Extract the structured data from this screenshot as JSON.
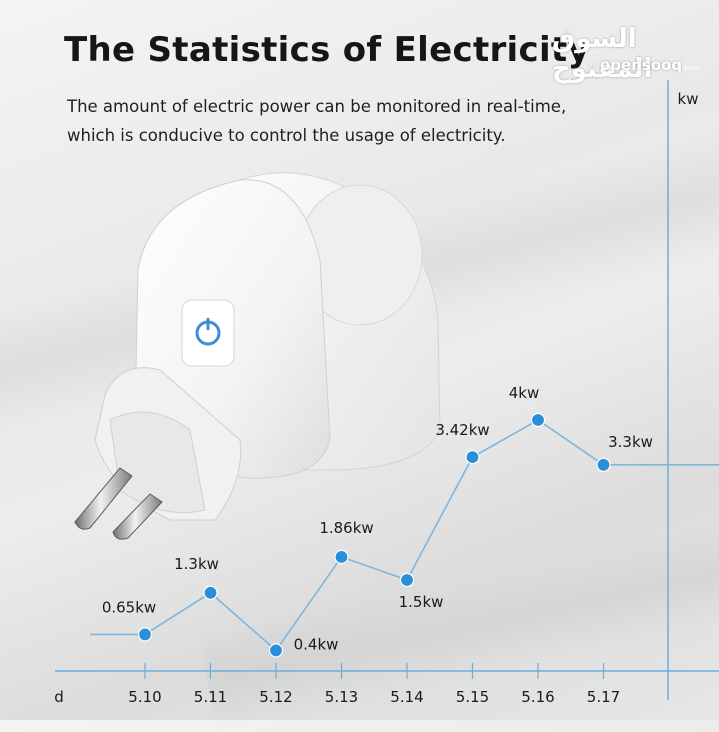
{
  "title": "The Statistics of Electricity",
  "subtitle_lines": [
    "The amount of electric power can be monitored in real-time,",
    "which is conducive to control the usage of electricity."
  ],
  "watermark": {
    "arabic": "السوق المفتوح",
    "latin": "opensooq",
    "suffix": ".com"
  },
  "product_icon": "smart-plug-icon",
  "colors": {
    "line": "#7fb6dc",
    "point": "#2a8fd9",
    "axis": "#6aaee0"
  },
  "chart_data": {
    "type": "line",
    "xlabel": "d",
    "ylabel": "kw",
    "categories": [
      "5.10",
      "5.11",
      "5.12",
      "5.13",
      "5.14",
      "5.15",
      "5.16",
      "5.17"
    ],
    "series": [
      {
        "values": [
          0.65,
          1.3,
          0.4,
          1.86,
          1.5,
          3.42,
          4,
          3.3
        ]
      }
    ],
    "data_labels": [
      "0.65kw",
      "1.3kw",
      "0.4kw",
      "1.86kw",
      "1.5kw",
      "3.42kw",
      "4kw",
      "3.3kw"
    ],
    "grid": false,
    "legend": false
  }
}
